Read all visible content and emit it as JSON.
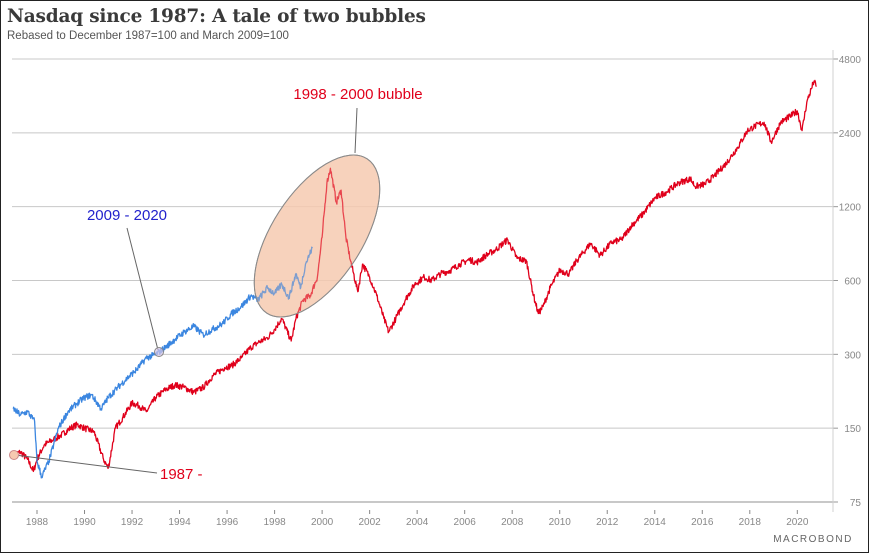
{
  "header": {
    "title": "Nasdaq since 1987: A tale of two bubbles",
    "subtitle": "Rebased to December 1987=100 and March 2009=100"
  },
  "brand": "MACROBOND",
  "chart_data": {
    "type": "line",
    "title": "Nasdaq since 1987: A tale of two bubbles",
    "subtitle": "Rebased to December 1987=100 and March 2009=100",
    "xlabel": "",
    "ylabel": "",
    "yscale": "log2",
    "ylim": [
      75,
      4800
    ],
    "xlim": [
      1987.0,
      2021.3
    ],
    "grid": true,
    "y_ticks": [
      75,
      150,
      300,
      600,
      1200,
      2400,
      4800
    ],
    "y_tick_labels": [
      "75",
      "150",
      "300",
      "600",
      "1200",
      "2400",
      "4800"
    ],
    "x_ticks": [
      1988,
      1990,
      1992,
      1994,
      1996,
      1998,
      2000,
      2002,
      2004,
      2006,
      2008,
      2010,
      2012,
      2014,
      2016,
      2018,
      2020
    ],
    "x_tick_labels": [
      "1988",
      "1990",
      "1992",
      "1994",
      "1996",
      "1998",
      "2000",
      "2002",
      "2004",
      "2006",
      "2008",
      "2010",
      "2012",
      "2014",
      "2016",
      "2018",
      "2020"
    ],
    "series": [
      {
        "name": "1987 -",
        "color": "#e0001b",
        "x": [
          1987.0,
          1987.3,
          1987.6,
          1987.85,
          1988.0,
          1988.3,
          1988.7,
          1989.0,
          1989.4,
          1989.7,
          1990.0,
          1990.4,
          1990.8,
          1991.0,
          1991.3,
          1991.6,
          1992.0,
          1992.3,
          1992.6,
          1993.0,
          1993.4,
          1993.8,
          1994.2,
          1994.6,
          1995.0,
          1995.4,
          1995.9,
          1996.2,
          1996.6,
          1997.0,
          1997.3,
          1997.7,
          1998.0,
          1998.3,
          1998.7,
          1998.9,
          1999.2,
          1999.5,
          1999.8,
          2000.0,
          2000.2,
          2000.35,
          2000.6,
          2000.8,
          2001.0,
          2001.2,
          2001.5,
          2001.7,
          2002.0,
          2002.3,
          2002.6,
          2002.8,
          2003.1,
          2003.5,
          2003.9,
          2004.3,
          2004.6,
          2005.0,
          2005.4,
          2005.8,
          2006.2,
          2006.5,
          2006.9,
          2007.3,
          2007.8,
          2008.2,
          2008.6,
          2008.9,
          2009.1,
          2009.3,
          2009.6,
          2010.0,
          2010.4,
          2010.7,
          2011.3,
          2011.7,
          2012.2,
          2012.6,
          2013.0,
          2013.5,
          2014.0,
          2014.5,
          2015.0,
          2015.5,
          2015.7,
          2016.1,
          2016.5,
          2017.0,
          2017.5,
          2017.9,
          2018.2,
          2018.6,
          2018.9,
          2019.3,
          2019.7,
          2020.0,
          2020.2,
          2020.4,
          2020.7,
          2020.8
        ],
        "values": [
          116,
          120,
          112,
          100,
          112,
          128,
          135,
          140,
          150,
          155,
          150,
          145,
          112,
          103,
          150,
          165,
          190,
          185,
          175,
          200,
          215,
          225,
          220,
          210,
          220,
          245,
          265,
          270,
          290,
          320,
          335,
          350,
          380,
          420,
          340,
          420,
          500,
          520,
          620,
          900,
          1500,
          1720,
          1250,
          1400,
          900,
          720,
          540,
          700,
          620,
          520,
          420,
          370,
          420,
          500,
          580,
          620,
          600,
          640,
          660,
          700,
          730,
          710,
          760,
          800,
          880,
          740,
          720,
          520,
          440,
          470,
          560,
          660,
          640,
          720,
          850,
          760,
          860,
          880,
          1000,
          1120,
          1300,
          1380,
          1500,
          1560,
          1450,
          1480,
          1600,
          1800,
          2100,
          2450,
          2550,
          2650,
          2200,
          2650,
          2800,
          2950,
          2450,
          3200,
          3900,
          3700
        ]
      },
      {
        "name": "2009 - 2020",
        "color": "#3b86e0",
        "x": [
          1987.0,
          1987.3,
          1987.6,
          1987.9,
          1988.0,
          1988.2,
          1988.5,
          1988.9,
          1989.3,
          1989.7,
          1990.0,
          1990.3,
          1990.7,
          1991.0,
          1991.4,
          1991.8,
          1992.2,
          1992.6,
          1993.0,
          1993.4,
          1993.8,
          1994.2,
          1994.6,
          1995.0,
          1995.4,
          1995.8,
          1996.2,
          1996.6,
          1997.0,
          1997.3,
          1997.7,
          1998.0,
          1998.3,
          1998.6,
          1998.9,
          1999.1,
          1999.3,
          1999.6
        ],
        "values": [
          180,
          170,
          175,
          160,
          110,
          95,
          110,
          150,
          175,
          190,
          200,
          205,
          180,
          200,
          220,
          240,
          260,
          290,
          300,
          320,
          345,
          370,
          390,
          360,
          380,
          400,
          440,
          470,
          520,
          500,
          560,
          530,
          580,
          510,
          640,
          560,
          700,
          820
        ]
      }
    ],
    "annotations": [
      {
        "text": "1998 - 2000 bubble",
        "color": "#e0001b",
        "target": "ellipse around 1997.5-2001 peak"
      },
      {
        "text": "2009 - 2020",
        "color": "#2222cc",
        "target": "blue series point near 1993"
      },
      {
        "text": "1987 -",
        "color": "#e0001b",
        "target": "start of red series"
      }
    ],
    "legend": "none"
  }
}
